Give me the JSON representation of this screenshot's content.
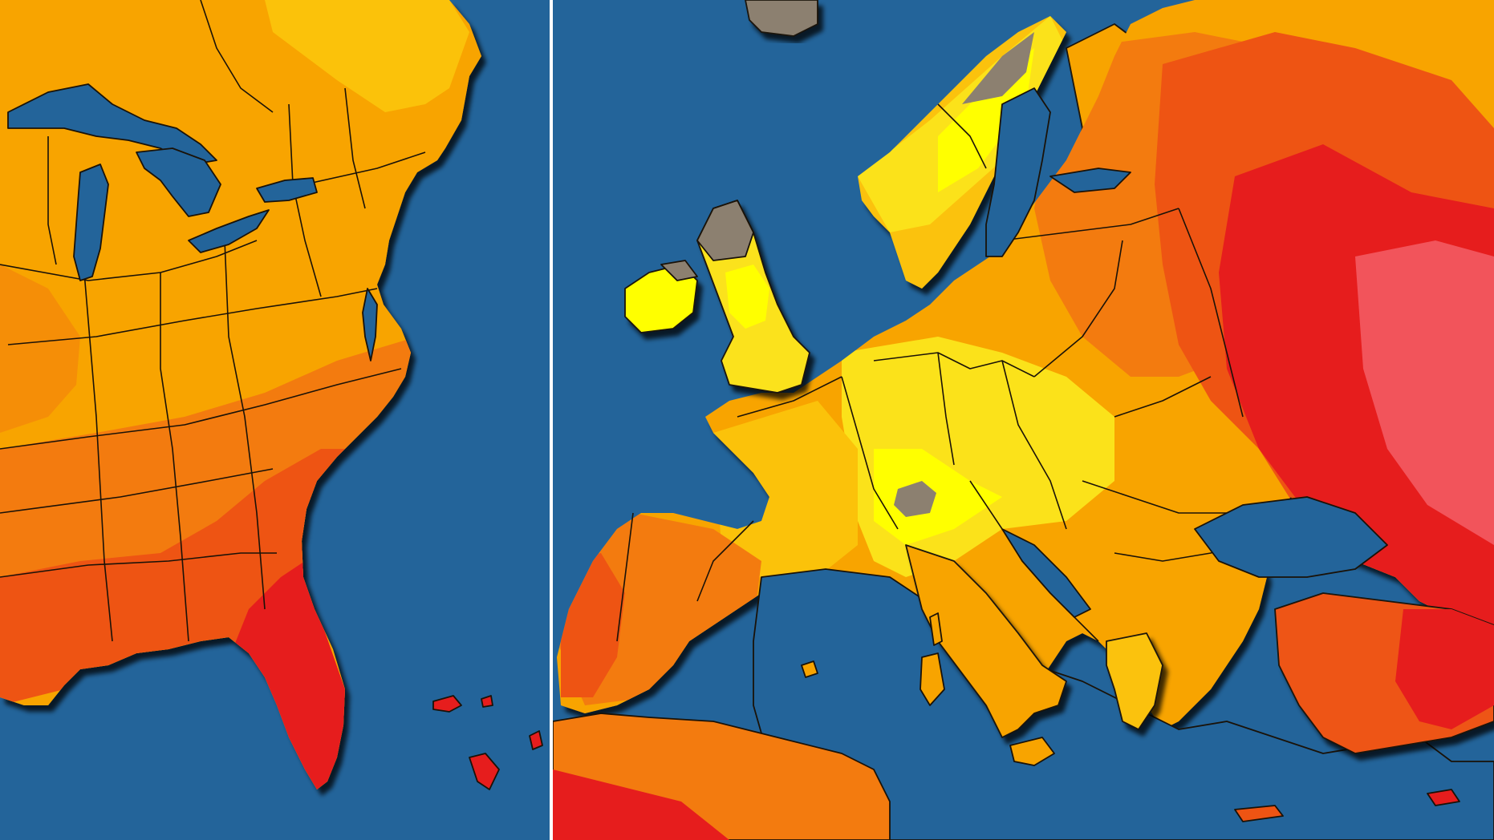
{
  "colors": {
    "ocean": "#23649a",
    "lake": "#23649a",
    "snow_gray": "#8c8070",
    "border": "#1a1208",
    "bright_yellow": "#ffff00",
    "yellow": "#fbe21a",
    "light_orange": "#fbc20a",
    "orange": "#f8a400",
    "dark_orange": "#f37b0f",
    "orange_red": "#ee5413",
    "red": "#e61d1d",
    "pink_red": "#f2545b"
  },
  "panels": [
    {
      "name": "eastern-united-states",
      "color_scale": [
        "orange",
        "dark_orange",
        "orange_red",
        "red"
      ]
    },
    {
      "name": "europe",
      "color_scale": [
        "snow_gray",
        "bright_yellow",
        "yellow",
        "light_orange",
        "orange",
        "dark_orange",
        "orange_red",
        "red",
        "pink_red"
      ]
    }
  ]
}
